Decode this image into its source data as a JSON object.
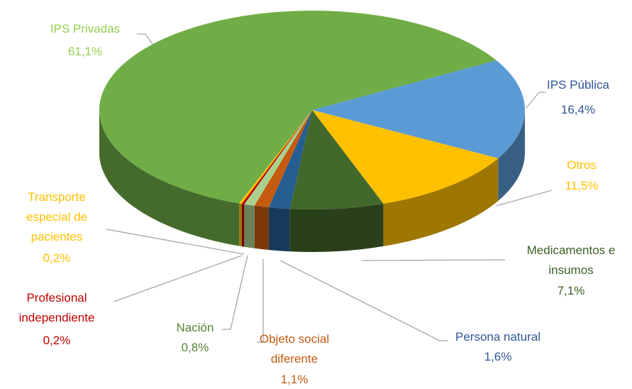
{
  "chart_data": {
    "type": "pie",
    "categories": [
      "IPS Pública",
      "Otros",
      "Medicamentos e insumos",
      "Persona natural",
      "Objeto social diferente",
      "Nación",
      "Profesional independiente",
      "Transporte especial de pacientes",
      "IPS Privadas"
    ],
    "values": [
      16.4,
      11.5,
      7.1,
      1.6,
      1.1,
      0.8,
      0.2,
      0.2,
      61.1
    ],
    "value_labels": [
      "16,4%",
      "11,5%",
      "7,1%",
      "1,6%",
      "1,1%",
      "0,8%",
      "0,2%",
      "0,2%",
      "61,1%"
    ],
    "colors": [
      "#5b9bd5",
      "#ffc000",
      "#43682b",
      "#255e91",
      "#c55a11",
      "#a9d18e",
      "#c00000",
      "#ffc000",
      "#70ad47"
    ],
    "label_colors": [
      "#2f5597",
      "#ffc000",
      "#3b6124",
      "#2f5597",
      "#c55a11",
      "#548235",
      "#c00000",
      "#ffc000",
      "#92d050"
    ]
  }
}
